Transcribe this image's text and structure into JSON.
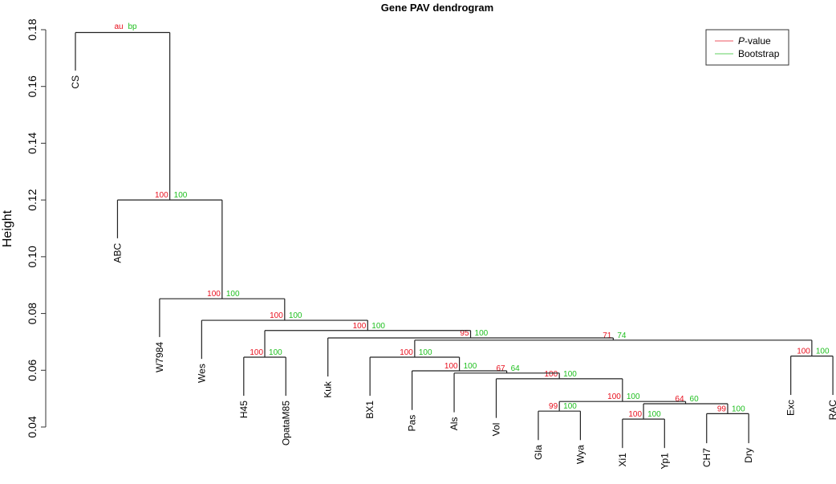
{
  "chart_data": {
    "type": "dendrogram",
    "title": "Gene PAV dendrogram",
    "xlabel": "",
    "ylabel": "Height",
    "ylim": [
      0.04,
      0.18
    ],
    "yticks": [
      "0.04",
      "0.06",
      "0.08",
      "0.10",
      "0.12",
      "0.14",
      "0.16",
      "0.18"
    ],
    "ytick_values": [
      0.04,
      0.06,
      0.08,
      0.1,
      0.12,
      0.14,
      0.16,
      0.18
    ],
    "legend": {
      "placement": "top-right",
      "entries": [
        {
          "label_italic": "P",
          "label": "-value",
          "color": "#e8101e"
        },
        {
          "label_italic": "",
          "label": "Bootstrap",
          "color": "#1fbf1f"
        }
      ]
    },
    "root_labels": {
      "au": "au",
      "bp": "bp"
    },
    "leaves": [
      {
        "name": "CS",
        "height": 0.1656
      },
      {
        "name": "ABC",
        "height": 0.1065
      },
      {
        "name": "W7984",
        "height": 0.0717
      },
      {
        "name": "Wes",
        "height": 0.064
      },
      {
        "name": "H45",
        "height": 0.051
      },
      {
        "name": "OpataM85",
        "height": 0.051
      },
      {
        "name": "Kuk",
        "height": 0.0578
      },
      {
        "name": "BX1",
        "height": 0.051
      },
      {
        "name": "Pas",
        "height": 0.046
      },
      {
        "name": "Als",
        "height": 0.0452
      },
      {
        "name": "Vol",
        "height": 0.0432
      },
      {
        "name": "Gla",
        "height": 0.0354
      },
      {
        "name": "Wya",
        "height": 0.0354
      },
      {
        "name": "Xi1",
        "height": 0.0326
      },
      {
        "name": "Yp1",
        "height": 0.0326
      },
      {
        "name": "CH7",
        "height": 0.0343
      },
      {
        "name": "Dry",
        "height": 0.0343
      },
      {
        "name": "Exc",
        "height": 0.0513
      },
      {
        "name": "RAC",
        "height": 0.0513
      }
    ],
    "nodes": [
      {
        "id": "n_glawya",
        "children": [
          "Gla",
          "Wya"
        ],
        "height": 0.0456,
        "au": "99",
        "bp": "100"
      },
      {
        "id": "n_xiyp",
        "children": [
          "Xi1",
          "Yp1"
        ],
        "height": 0.0428,
        "au": "100",
        "bp": "100"
      },
      {
        "id": "n_chdry",
        "children": [
          "CH7",
          "Dry"
        ],
        "height": 0.0447,
        "au": "99",
        "bp": "100"
      },
      {
        "id": "n_xich",
        "children": [
          "n_xiyp",
          "n_chdry"
        ],
        "height": 0.0482,
        "au": "64",
        "bp": "60"
      },
      {
        "id": "n_glaxi",
        "children": [
          "n_glawya",
          "n_xich"
        ],
        "height": 0.049,
        "au": "100",
        "bp": "100"
      },
      {
        "id": "n_vol",
        "children": [
          "Vol",
          "n_glaxi"
        ],
        "height": 0.057,
        "au": "100",
        "bp": "100"
      },
      {
        "id": "n_als",
        "children": [
          "Als",
          "n_vol"
        ],
        "height": 0.059,
        "au": "67",
        "bp": "64"
      },
      {
        "id": "n_pas",
        "children": [
          "Pas",
          "n_als"
        ],
        "height": 0.0598,
        "au": "100",
        "bp": "100"
      },
      {
        "id": "n_bx1",
        "children": [
          "BX1",
          "n_pas"
        ],
        "height": 0.0646,
        "au": "100",
        "bp": "100"
      },
      {
        "id": "n_excrac",
        "children": [
          "Exc",
          "RAC"
        ],
        "height": 0.065,
        "au": "100",
        "bp": "100"
      },
      {
        "id": "n_big",
        "children": [
          "n_bx1",
          "n_excrac"
        ],
        "height": 0.0706,
        "au": "71",
        "bp": "74"
      },
      {
        "id": "n_kuk",
        "children": [
          "Kuk",
          "n_big"
        ],
        "height": 0.0714,
        "au": "95",
        "bp": "100"
      },
      {
        "id": "n_h45",
        "children": [
          "H45",
          "OpataM85"
        ],
        "height": 0.0646,
        "au": "100",
        "bp": "100"
      },
      {
        "id": "n_h45kuk",
        "children": [
          "n_h45",
          "n_kuk"
        ],
        "height": 0.074,
        "au": "100",
        "bp": "100"
      },
      {
        "id": "n_wes",
        "children": [
          "Wes",
          "n_h45kuk"
        ],
        "height": 0.0776,
        "au": "100",
        "bp": "100"
      },
      {
        "id": "n_w7984",
        "children": [
          "W7984",
          "n_wes"
        ],
        "height": 0.0852,
        "au": "100",
        "bp": "100"
      },
      {
        "id": "n_abc",
        "children": [
          "ABC",
          "n_w7984"
        ],
        "height": 0.12,
        "au": "100",
        "bp": "100"
      },
      {
        "id": "n_root",
        "children": [
          "CS",
          "n_abc"
        ],
        "height": 0.179,
        "au": "",
        "bp": ""
      }
    ]
  }
}
